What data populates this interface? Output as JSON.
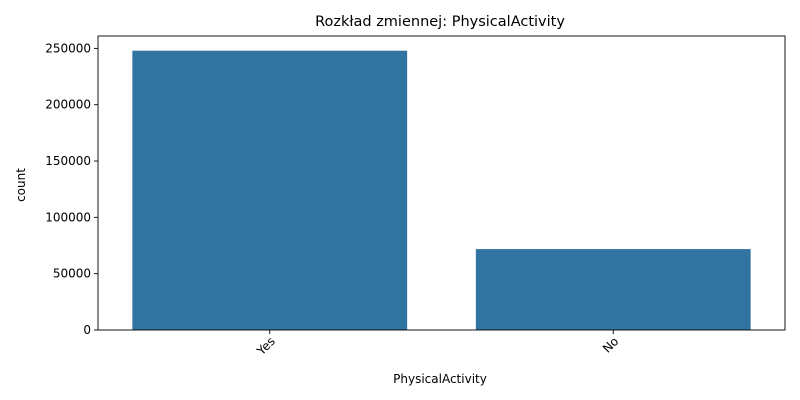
{
  "chart_data": {
    "type": "bar",
    "title": "Rozkład zmiennej: PhysicalActivity",
    "xlabel": "PhysicalActivity",
    "ylabel": "count",
    "categories": [
      "Yes",
      "No"
    ],
    "values": [
      247957,
      71838
    ],
    "ylim": [
      0,
      261000
    ],
    "yticks": [
      0,
      50000,
      100000,
      150000,
      200000,
      250000
    ],
    "x_tick_rotation_deg": 45,
    "bar_color": "#3274a1",
    "grid": false,
    "legend": "none"
  }
}
